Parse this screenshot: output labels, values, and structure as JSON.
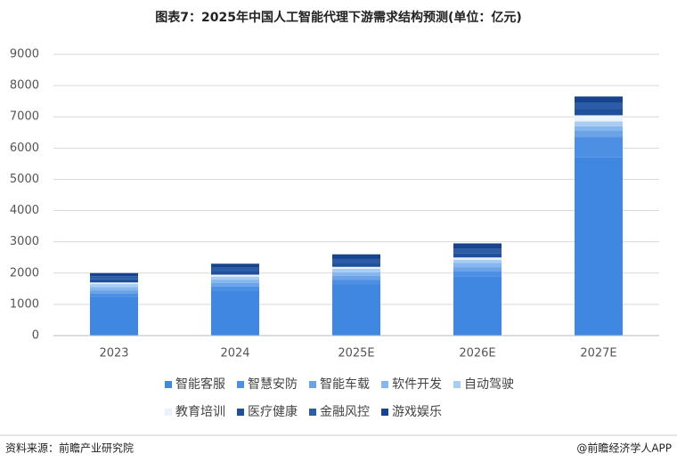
{
  "chart_data": {
    "type": "stacked-bar",
    "title": "图表7：2025年中国人工智能代理下游需求结构预测(单位：亿元)",
    "categories": [
      "2023",
      "2024",
      "2025E",
      "2026E",
      "2027E"
    ],
    "series": [
      {
        "name": "智能客服",
        "color": "#3f87e0",
        "values": [
          1250,
          1450,
          1650,
          1900,
          5700
        ]
      },
      {
        "name": "智慧安防",
        "color": "#4d8fe2",
        "values": [
          100,
          120,
          130,
          150,
          650
        ]
      },
      {
        "name": "智能车载",
        "color": "#6aa3e8",
        "values": [
          100,
          120,
          130,
          140,
          200
        ]
      },
      {
        "name": "软件开发",
        "color": "#85b6ee",
        "values": [
          100,
          100,
          120,
          130,
          150
        ]
      },
      {
        "name": "自动驾驶",
        "color": "#a8cdf5",
        "values": [
          100,
          100,
          110,
          110,
          150
        ]
      },
      {
        "name": "教育培训",
        "color": "#eaf2fc",
        "values": [
          50,
          60,
          60,
          70,
          200
        ]
      },
      {
        "name": "医疗健康",
        "color": "#1f4f9a",
        "values": [
          100,
          100,
          120,
          140,
          200
        ]
      },
      {
        "name": "金融风控",
        "color": "#2a5ca8",
        "values": [
          100,
          120,
          130,
          150,
          200
        ]
      },
      {
        "name": "游戏娱乐",
        "color": "#17448c",
        "values": [
          100,
          130,
          150,
          160,
          200
        ]
      }
    ],
    "ylim": [
      0,
      9000
    ],
    "yticks": [
      0,
      1000,
      2000,
      3000,
      4000,
      5000,
      6000,
      7000,
      8000,
      9000
    ],
    "grid": true,
    "source": "资料来源：前瞻产业研究院",
    "credit": "@前瞻经济学人APP"
  }
}
